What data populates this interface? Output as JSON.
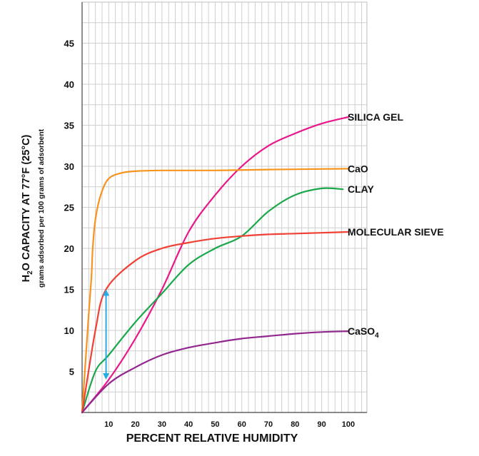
{
  "chart_data": {
    "type": "line",
    "xlabel": "PERCENT RELATIVE HUMIDITY",
    "ylabel": {
      "line1_prefix": "H",
      "line1_sub": "2",
      "line1_suffix": "O CAPACITY AT 77°F (25°C)",
      "line2": "grams adsorbed per 100 grams of adsorbent"
    },
    "xlim": [
      0,
      107
    ],
    "ylim": [
      0,
      50
    ],
    "x_ticks": [
      10,
      20,
      30,
      40,
      50,
      60,
      70,
      80,
      90,
      100
    ],
    "y_ticks": [
      5,
      10,
      15,
      20,
      25,
      30,
      35,
      40,
      45
    ],
    "grid": true,
    "series": [
      {
        "name": "SILICA GEL",
        "color": "#e8178a",
        "x": [
          0,
          10,
          20,
          30,
          40,
          50,
          60,
          70,
          80,
          90,
          100
        ],
        "y": [
          0,
          4,
          9,
          15,
          22,
          26.5,
          30,
          32.5,
          34,
          35.2,
          36
        ]
      },
      {
        "name": "CaO",
        "color": "#f7941d",
        "x": [
          0,
          2.5,
          3.5,
          4,
          5,
          7,
          10,
          15,
          20,
          30,
          50,
          70,
          100
        ],
        "y": [
          0,
          12,
          16.5,
          20,
          23.5,
          26.5,
          28.5,
          29.2,
          29.4,
          29.5,
          29.5,
          29.6,
          29.7
        ]
      },
      {
        "name": "CLAY",
        "color": "#1aa84a",
        "x": [
          0,
          5,
          10,
          20,
          30,
          40,
          50,
          60,
          70,
          80,
          90,
          98
        ],
        "y": [
          0,
          5,
          7,
          11,
          14.5,
          18,
          20,
          21.5,
          24.5,
          26.5,
          27.3,
          27.2
        ]
      },
      {
        "name": "MOLECULAR SIEVE",
        "color": "#ef4136",
        "x": [
          0,
          5,
          9,
          20,
          30,
          40,
          50,
          60,
          70,
          80,
          90,
          100
        ],
        "y": [
          0,
          10,
          15,
          18.5,
          20,
          20.7,
          21.2,
          21.5,
          21.7,
          21.8,
          21.9,
          22
        ]
      },
      {
        "name": "CaSO",
        "name_sub": "4",
        "color": "#92278f",
        "x": [
          0,
          10,
          20,
          30,
          40,
          50,
          60,
          70,
          80,
          90,
          100
        ],
        "y": [
          0,
          3.5,
          5.5,
          7,
          7.9,
          8.5,
          9,
          9.3,
          9.6,
          9.8,
          9.9
        ]
      }
    ],
    "annotation": {
      "type": "double-arrow",
      "color": "#29abe2",
      "x": 9,
      "y_from": 4,
      "y_to": 15
    }
  }
}
